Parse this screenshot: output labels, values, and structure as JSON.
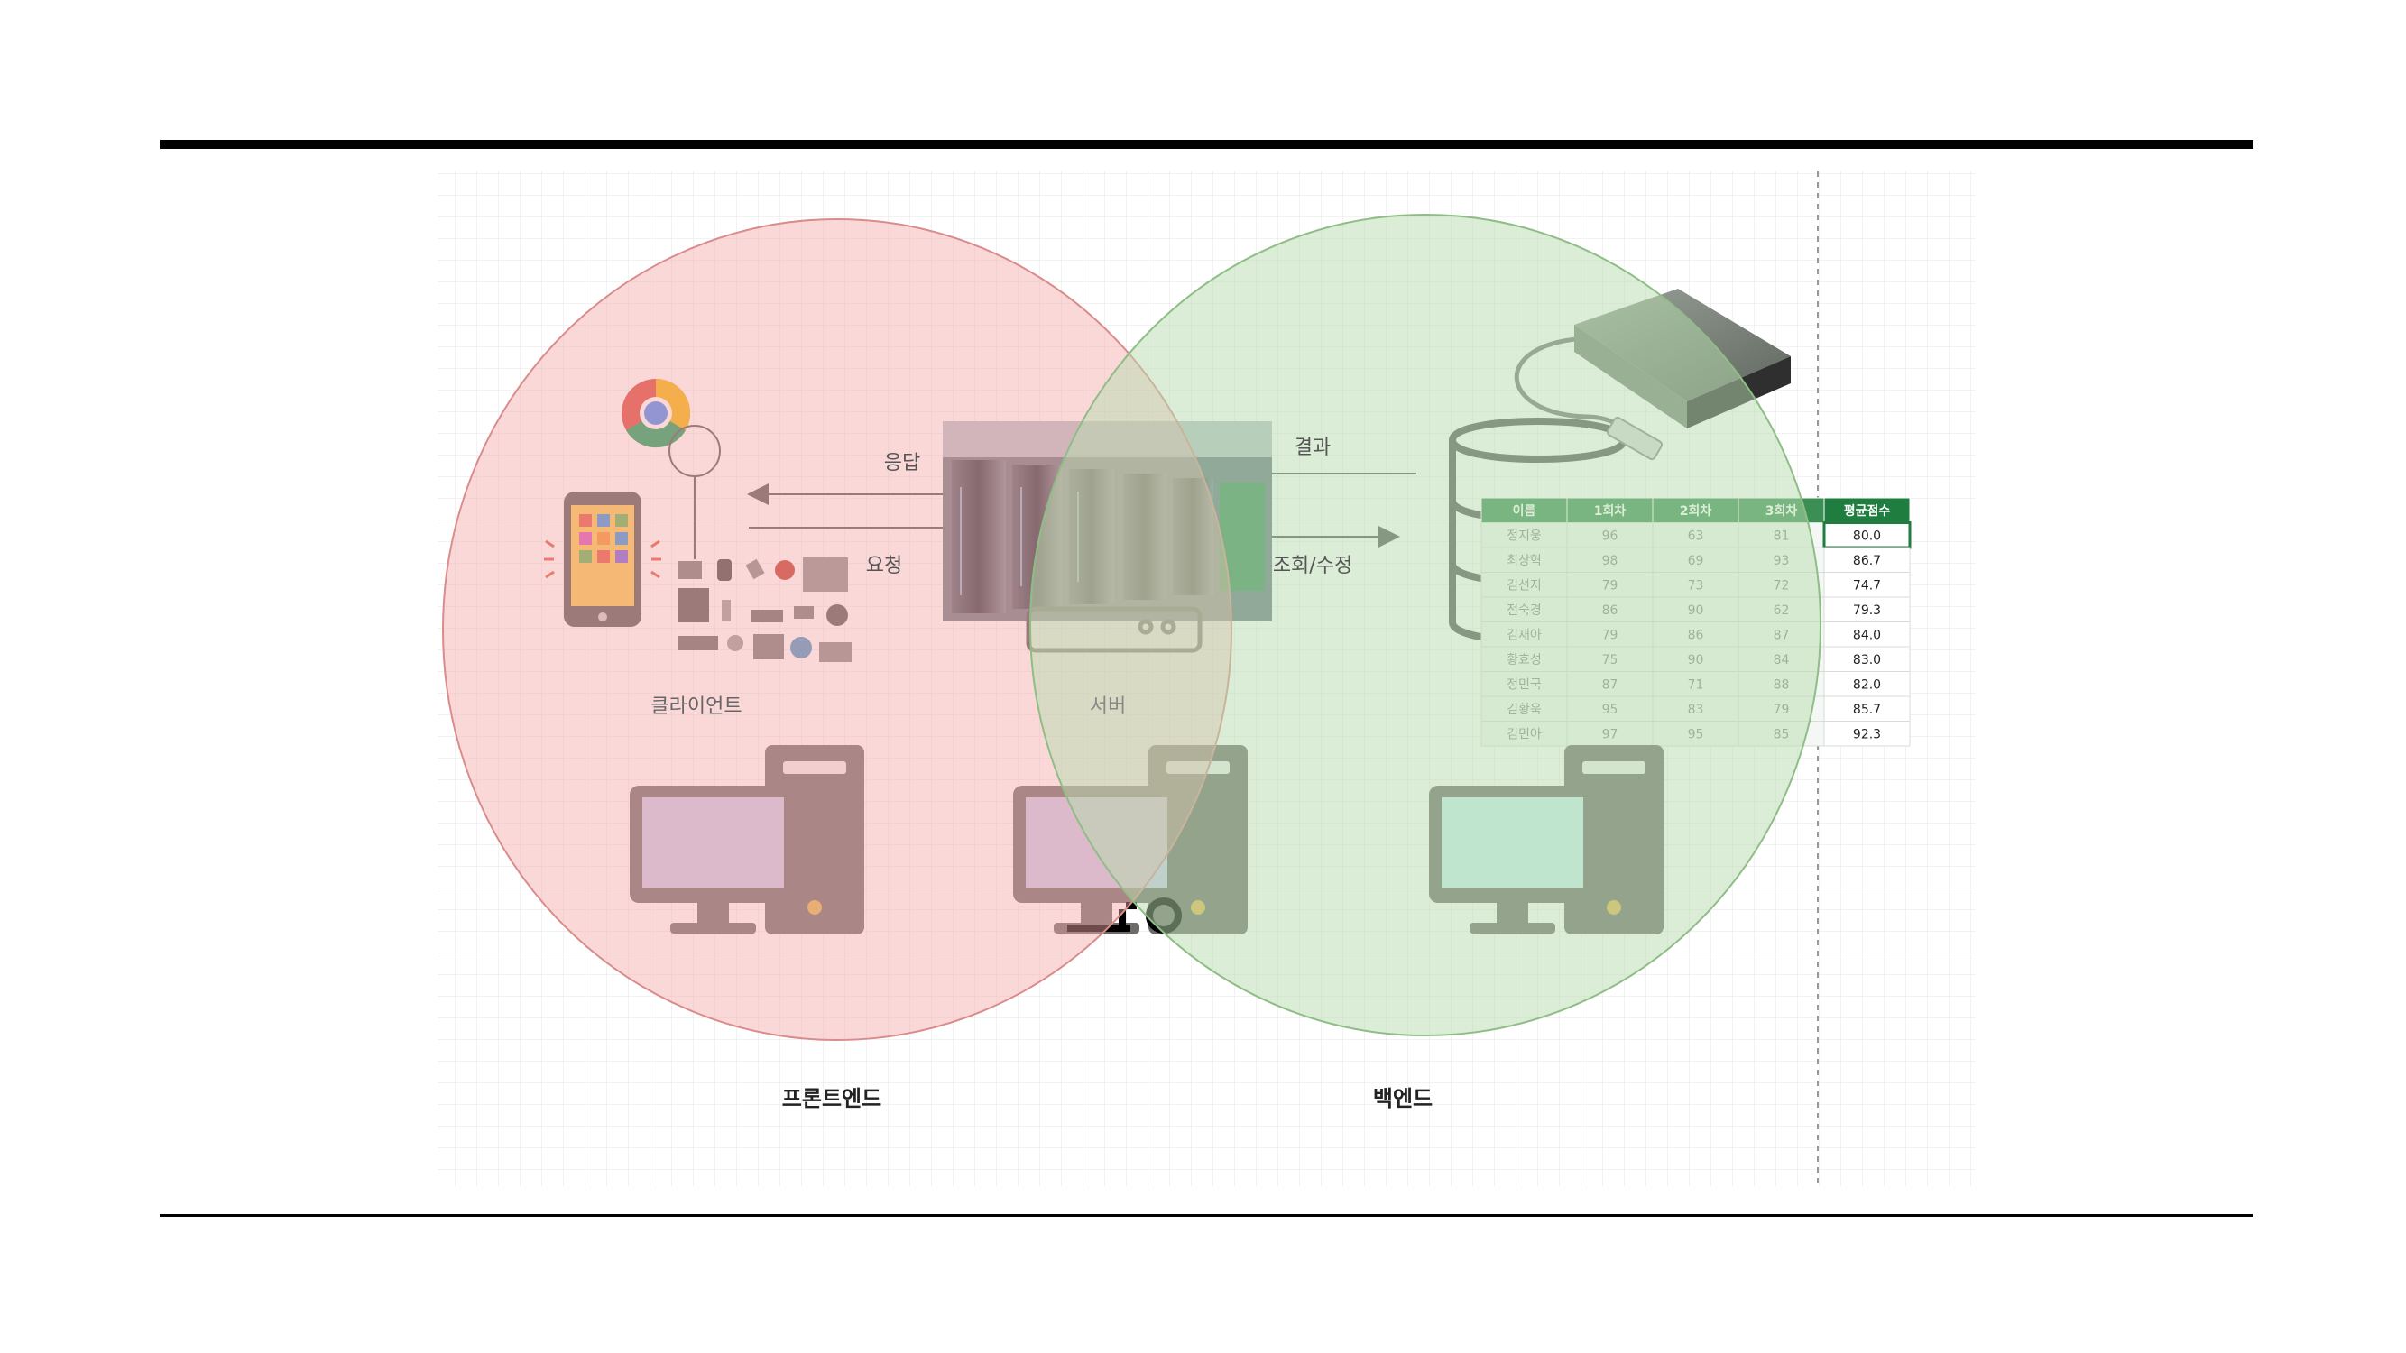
{
  "labels": {
    "response": "응답",
    "request": "요청",
    "result": "결과",
    "query_modify": "조회/수정",
    "client": "클라이언트",
    "server": "서버",
    "frontend": "프론트엔드",
    "backend": "백엔드"
  },
  "colors": {
    "frontend_circle": "#f4a9a8",
    "backend_circle": "#b7dcae",
    "table_header": "#3b8f55",
    "table_header_highlight": "#1e7d3f"
  },
  "score_table": {
    "headers": [
      "이름",
      "1회차",
      "2회차",
      "3회차",
      "평균점수"
    ],
    "rows": [
      [
        "정지웅",
        "96",
        "63",
        "81",
        "80.0"
      ],
      [
        "최상혁",
        "98",
        "69",
        "93",
        "86.7"
      ],
      [
        "김선지",
        "79",
        "73",
        "72",
        "74.7"
      ],
      [
        "전숙경",
        "86",
        "90",
        "62",
        "79.3"
      ],
      [
        "김재아",
        "79",
        "86",
        "87",
        "84.0"
      ],
      [
        "황효성",
        "75",
        "90",
        "84",
        "83.0"
      ],
      [
        "정민국",
        "87",
        "71",
        "88",
        "82.0"
      ],
      [
        "김황욱",
        "95",
        "83",
        "79",
        "85.7"
      ],
      [
        "김민아",
        "97",
        "95",
        "85",
        "92.3"
      ]
    ]
  },
  "icons": [
    "chrome-icon",
    "smartphone-icon",
    "iot-devices-icon",
    "server-room-photo",
    "database-icon",
    "external-hard-drive-icon",
    "desktop-computer-icon"
  ]
}
